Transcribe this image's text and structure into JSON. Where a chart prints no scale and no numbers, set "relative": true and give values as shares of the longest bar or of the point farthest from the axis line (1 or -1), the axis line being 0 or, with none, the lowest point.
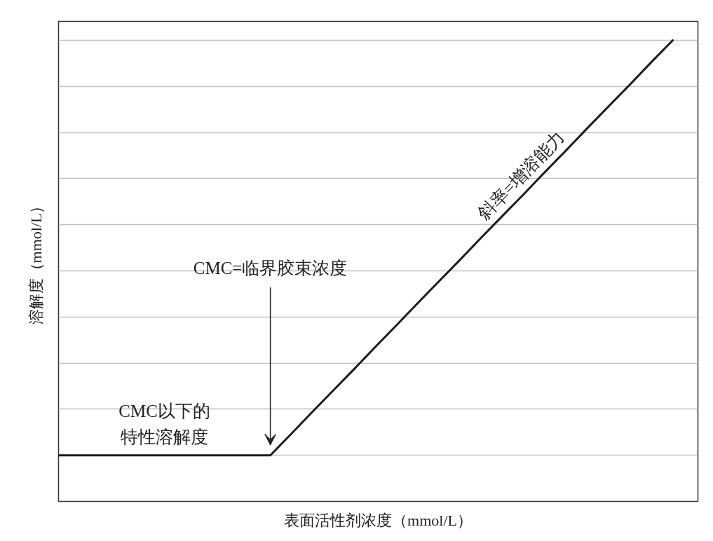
{
  "chart_data": {
    "type": "line",
    "relative": true,
    "categories": [
      null,
      null,
      null,
      null,
      null,
      null,
      null,
      null,
      null,
      null,
      null,
      null,
      null,
      null,
      null,
      null,
      null,
      null,
      null,
      null,
      null,
      null,
      null,
      null,
      null,
      null,
      null,
      null,
      null,
      null
    ],
    "series": [
      {
        "color": "#1c1c1c",
        "values": [
          0.1,
          0.1,
          0.1,
          0.1,
          0.1,
          0.1,
          0.1,
          0.1,
          0.1,
          0.1,
          0.1,
          0.147,
          0.195,
          0.242,
          0.289,
          0.337,
          0.384,
          0.432,
          0.479,
          0.526,
          0.574,
          0.621,
          0.668,
          0.716,
          0.763,
          0.811,
          0.858,
          0.905,
          0.953,
          1.0
        ]
      }
    ],
    "xlabel": "表面活性剂浓度（mmol/L）",
    "ylabel": "溶解度（mmol/L）",
    "grid": "y",
    "annotations": [
      "CMC=临界胶束浓度",
      "CMC以下的特性溶解度",
      "斜率=增溶能力"
    ]
  }
}
